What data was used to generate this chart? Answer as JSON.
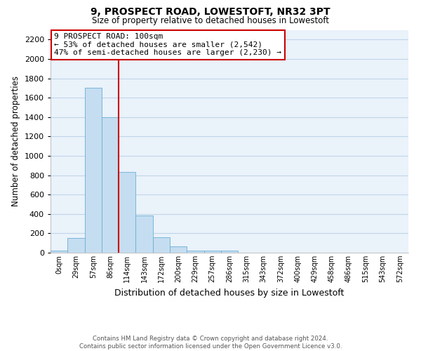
{
  "title": "9, PROSPECT ROAD, LOWESTOFT, NR32 3PT",
  "subtitle": "Size of property relative to detached houses in Lowestoft",
  "xlabel": "Distribution of detached houses by size in Lowestoft",
  "ylabel": "Number of detached properties",
  "bar_labels": [
    "0sqm",
    "29sqm",
    "57sqm",
    "86sqm",
    "114sqm",
    "143sqm",
    "172sqm",
    "200sqm",
    "229sqm",
    "257sqm",
    "286sqm",
    "315sqm",
    "343sqm",
    "372sqm",
    "400sqm",
    "429sqm",
    "458sqm",
    "486sqm",
    "515sqm",
    "543sqm",
    "572sqm"
  ],
  "bar_values": [
    20,
    155,
    1700,
    1400,
    830,
    385,
    160,
    65,
    25,
    20,
    20,
    0,
    0,
    0,
    0,
    0,
    0,
    0,
    0,
    0,
    0
  ],
  "bar_color": "#c5ddf0",
  "bar_edge_color": "#6aafd6",
  "highlight_index": 4,
  "highlight_line_color": "#cc0000",
  "ylim": [
    0,
    2300
  ],
  "yticks": [
    0,
    200,
    400,
    600,
    800,
    1000,
    1200,
    1400,
    1600,
    1800,
    2000,
    2200
  ],
  "annotation_title": "9 PROSPECT ROAD: 100sqm",
  "annotation_line1": "← 53% of detached houses are smaller (2,542)",
  "annotation_line2": "47% of semi-detached houses are larger (2,230) →",
  "annotation_box_color": "#ffffff",
  "annotation_box_edge": "#cc0000",
  "footer_line1": "Contains HM Land Registry data © Crown copyright and database right 2024.",
  "footer_line2": "Contains public sector information licensed under the Open Government Licence v3.0.",
  "background_color": "#ffffff",
  "plot_bg_color": "#eaf2fa",
  "grid_color": "#c0d5e8"
}
